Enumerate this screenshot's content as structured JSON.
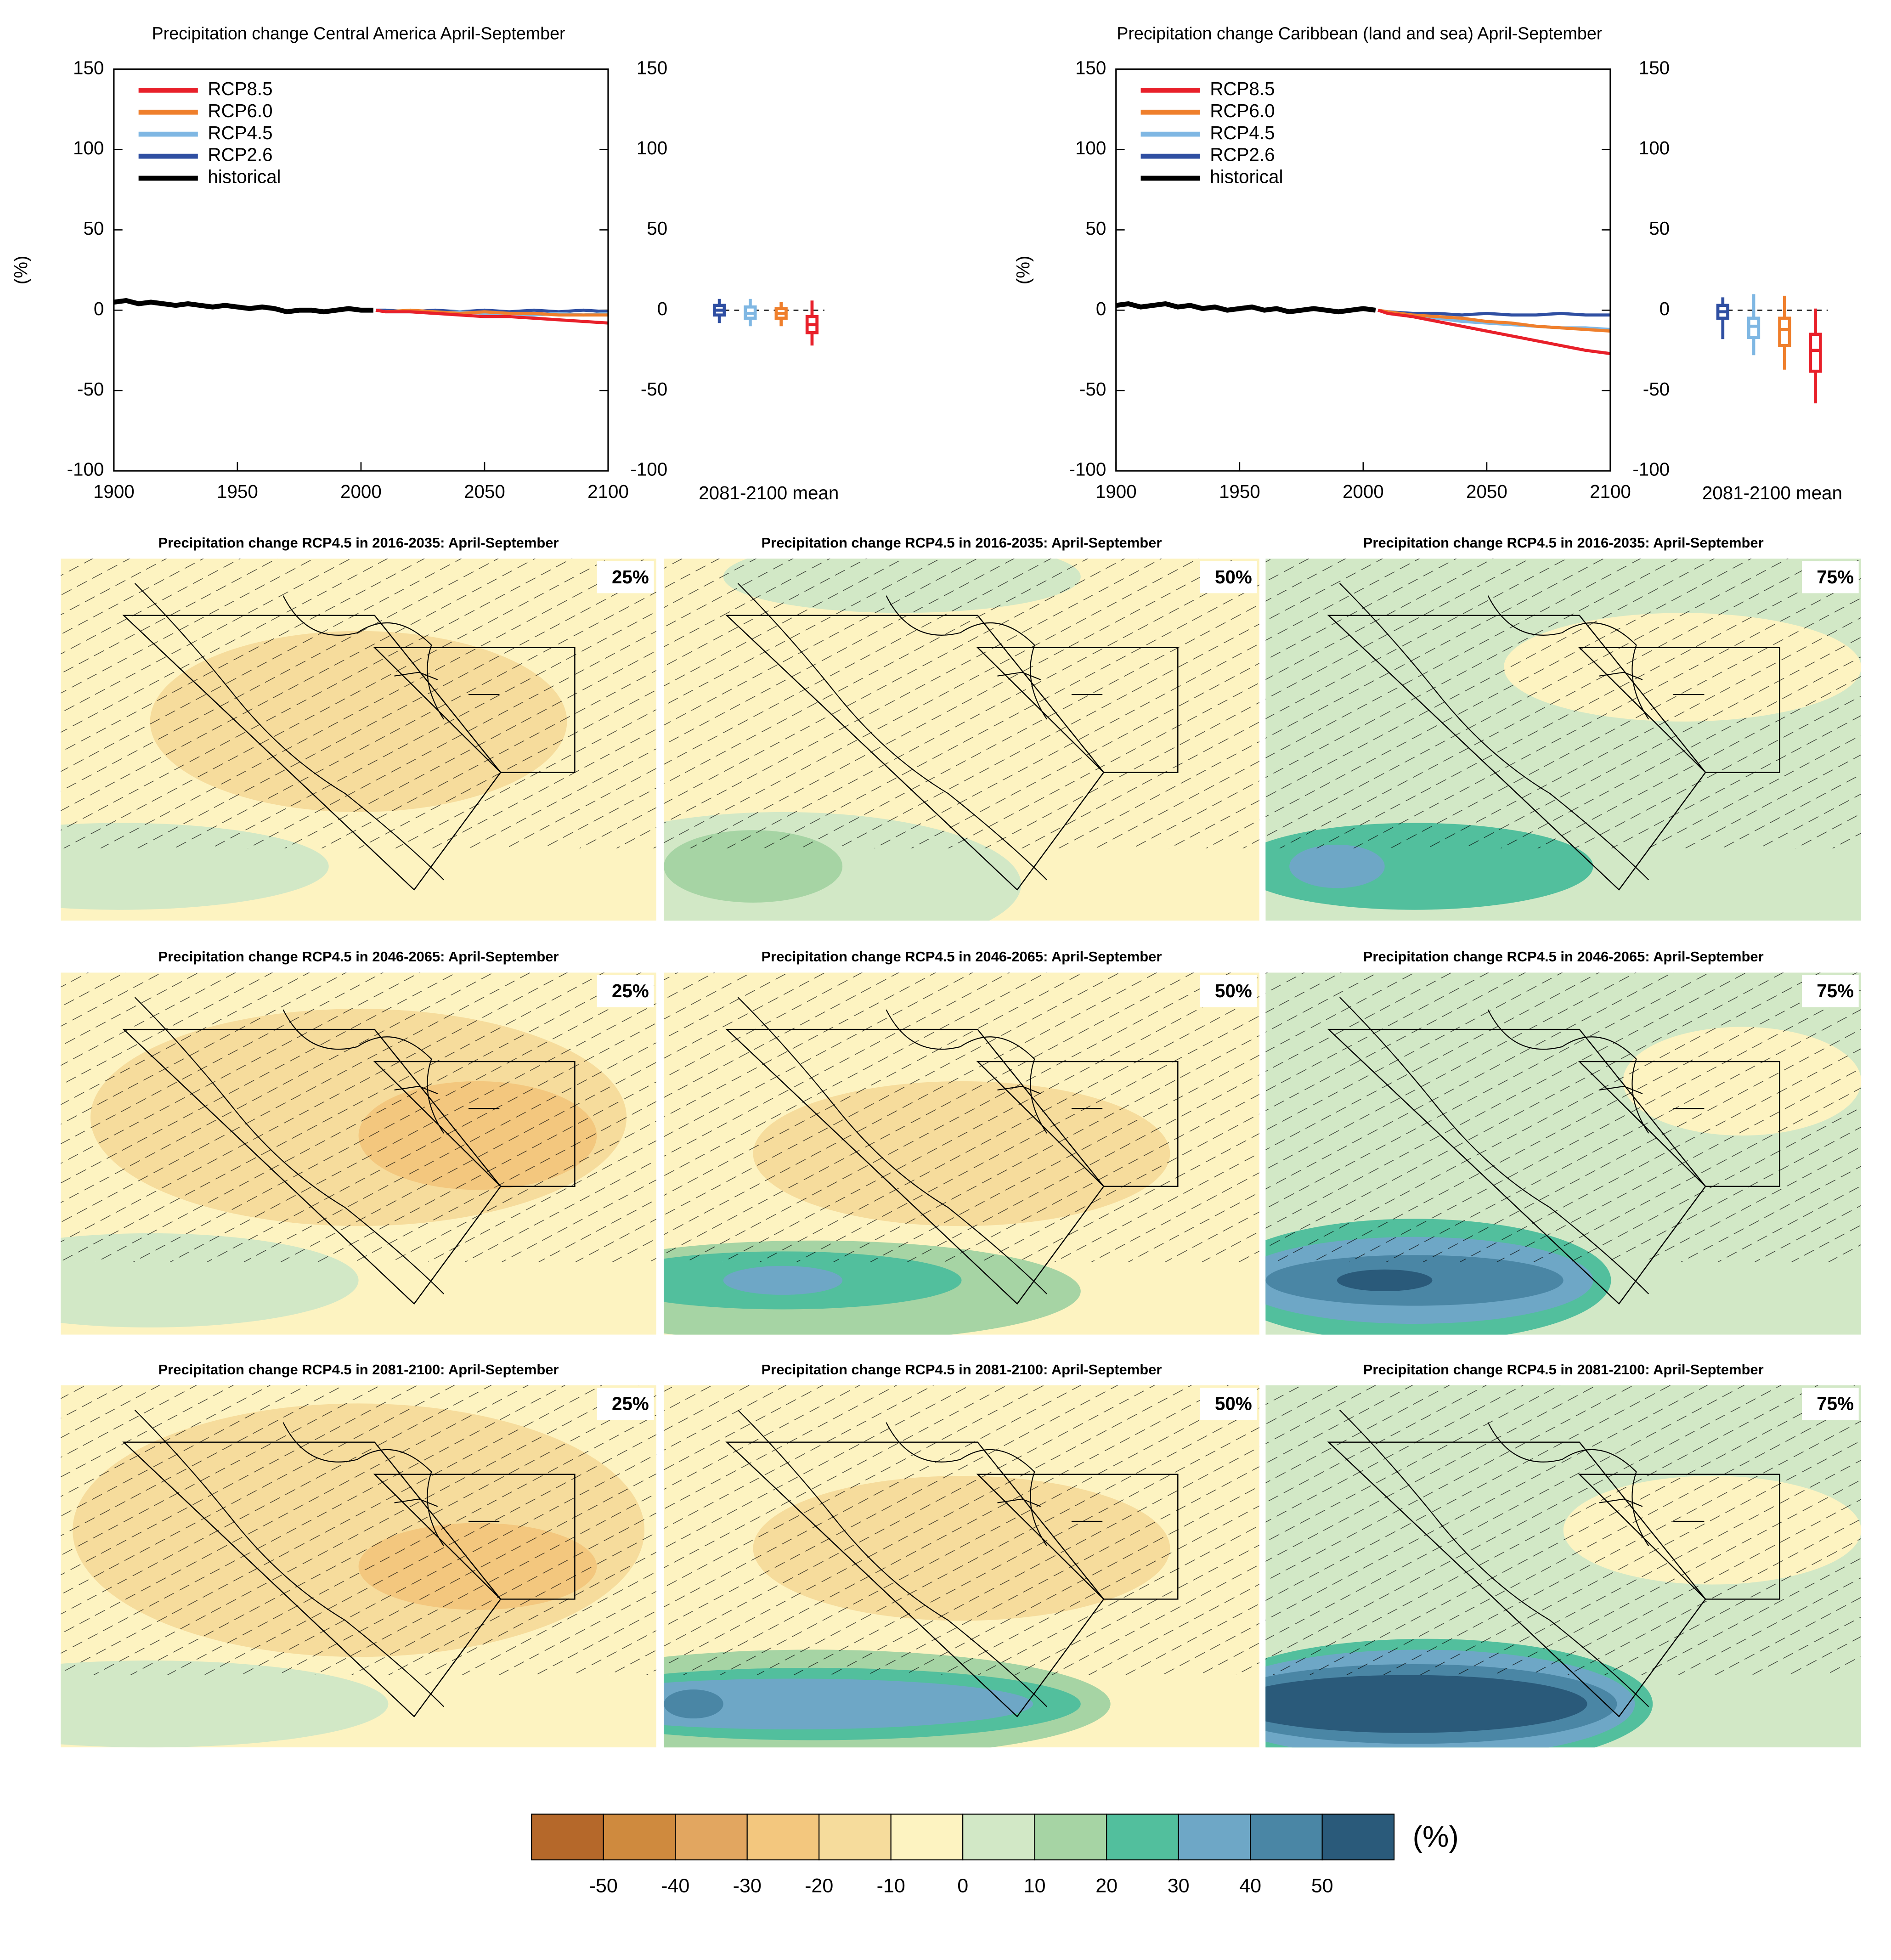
{
  "chart_data": [
    {
      "type": "line",
      "title": "Precipitation change Central America April-September",
      "y_label": "(%)",
      "xlim": [
        1900,
        2100
      ],
      "xticks": [
        1900,
        1950,
        2000,
        2050,
        2100
      ],
      "ylim": [
        -100,
        150
      ],
      "yticks": [
        -100,
        -50,
        0,
        50,
        100,
        150
      ],
      "y2lim": [
        -100,
        150
      ],
      "y2ticks": [
        -100,
        -50,
        0,
        50,
        100,
        150
      ],
      "box_label": "2081-2100 mean",
      "series": [
        {
          "name": "RCP8.5",
          "color": "#e8202a",
          "x": [
            2006,
            2010,
            2020,
            2030,
            2040,
            2050,
            2060,
            2070,
            2080,
            2090,
            2100
          ],
          "values": [
            0,
            -1,
            -1,
            -2,
            -3,
            -4,
            -4,
            -5,
            -6,
            -7,
            -8
          ],
          "box": {
            "min": -22,
            "q1": -14,
            "median": -9,
            "q3": -4,
            "max": 6
          }
        },
        {
          "name": "RCP6.0",
          "color": "#ef7f2c",
          "x": [
            2006,
            2010,
            2020,
            2030,
            2040,
            2050,
            2060,
            2070,
            2080,
            2090,
            2100
          ],
          "values": [
            0,
            -1,
            0,
            -1,
            -2,
            -1,
            -2,
            -2,
            -3,
            -3,
            -3
          ],
          "box": {
            "min": -10,
            "q1": -5,
            "median": -2,
            "q3": 1,
            "max": 5
          }
        },
        {
          "name": "RCP4.5",
          "color": "#7fb7e3",
          "x": [
            2006,
            2010,
            2020,
            2030,
            2040,
            2050,
            2060,
            2070,
            2080,
            2090,
            2100
          ],
          "values": [
            0,
            -1,
            -1,
            -2,
            -1,
            -2,
            -2,
            -3,
            -2,
            -3,
            -2
          ],
          "box": {
            "min": -10,
            "q1": -5,
            "median": -2,
            "q3": 2,
            "max": 7
          }
        },
        {
          "name": "RCP2.6",
          "color": "#2f4fa2",
          "x": [
            2006,
            2010,
            2020,
            2030,
            2040,
            2050,
            2060,
            2070,
            2080,
            2090,
            2100
          ],
          "values": [
            0,
            0,
            -1,
            0,
            -1,
            0,
            -1,
            0,
            -1,
            0,
            -1
          ],
          "box": {
            "min": -8,
            "q1": -3,
            "median": 0,
            "q3": 3,
            "max": 7
          }
        },
        {
          "name": "historical",
          "color": "#000000",
          "x": [
            1900,
            1905,
            1910,
            1915,
            1920,
            1925,
            1930,
            1935,
            1940,
            1945,
            1950,
            1955,
            1960,
            1965,
            1970,
            1975,
            1980,
            1985,
            1990,
            1995,
            2000,
            2005
          ],
          "values": [
            5,
            6,
            4,
            5,
            4,
            3,
            4,
            3,
            2,
            3,
            2,
            1,
            2,
            1,
            -1,
            0,
            0,
            -1,
            0,
            1,
            0,
            0
          ]
        }
      ]
    },
    {
      "type": "line",
      "title": "Precipitation change Caribbean (land and sea) April-September",
      "y_label": "(%)",
      "xlim": [
        1900,
        2100
      ],
      "xticks": [
        1900,
        1950,
        2000,
        2050,
        2100
      ],
      "ylim": [
        -100,
        150
      ],
      "yticks": [
        -100,
        -50,
        0,
        50,
        100,
        150
      ],
      "y2lim": [
        -100,
        150
      ],
      "y2ticks": [
        -100,
        -50,
        0,
        50,
        100,
        150
      ],
      "box_label": "2081-2100 mean",
      "series": [
        {
          "name": "RCP8.5",
          "color": "#e8202a",
          "x": [
            2006,
            2010,
            2020,
            2030,
            2040,
            2050,
            2060,
            2070,
            2080,
            2090,
            2100
          ],
          "values": [
            0,
            -2,
            -4,
            -7,
            -10,
            -13,
            -16,
            -19,
            -22,
            -25,
            -27
          ],
          "box": {
            "min": -58,
            "q1": -38,
            "median": -25,
            "q3": -15,
            "max": 1
          }
        },
        {
          "name": "RCP6.0",
          "color": "#ef7f2c",
          "x": [
            2006,
            2010,
            2020,
            2030,
            2040,
            2050,
            2060,
            2070,
            2080,
            2090,
            2100
          ],
          "values": [
            0,
            -1,
            -3,
            -4,
            -5,
            -7,
            -8,
            -10,
            -11,
            -12,
            -13
          ],
          "box": {
            "min": -37,
            "q1": -22,
            "median": -12,
            "q3": -5,
            "max": 9
          }
        },
        {
          "name": "RCP4.5",
          "color": "#7fb7e3",
          "x": [
            2006,
            2010,
            2020,
            2030,
            2040,
            2050,
            2060,
            2070,
            2080,
            2090,
            2100
          ],
          "values": [
            0,
            -2,
            -4,
            -5,
            -7,
            -8,
            -9,
            -10,
            -11,
            -11,
            -12
          ],
          "box": {
            "min": -28,
            "q1": -17,
            "median": -10,
            "q3": -5,
            "max": 10
          }
        },
        {
          "name": "RCP2.6",
          "color": "#2f4fa2",
          "x": [
            2006,
            2010,
            2020,
            2030,
            2040,
            2050,
            2060,
            2070,
            2080,
            2090,
            2100
          ],
          "values": [
            0,
            -1,
            -2,
            -2,
            -3,
            -2,
            -3,
            -3,
            -2,
            -3,
            -3
          ],
          "box": {
            "min": -18,
            "q1": -5,
            "median": -1,
            "q3": 3,
            "max": 8
          }
        },
        {
          "name": "historical",
          "color": "#000000",
          "x": [
            1900,
            1905,
            1910,
            1915,
            1920,
            1925,
            1930,
            1935,
            1940,
            1945,
            1950,
            1955,
            1960,
            1965,
            1970,
            1975,
            1980,
            1985,
            1990,
            1995,
            2000,
            2005
          ],
          "values": [
            3,
            4,
            2,
            3,
            4,
            2,
            3,
            1,
            2,
            0,
            1,
            2,
            0,
            1,
            -1,
            0,
            1,
            0,
            -1,
            0,
            1,
            0
          ]
        }
      ]
    }
  ],
  "maps": [
    {
      "title": "Precipitation change RCP4.5 in 2016-2035: April-September",
      "percentile": "25%"
    },
    {
      "title": "Precipitation change RCP4.5 in 2016-2035: April-September",
      "percentile": "50%"
    },
    {
      "title": "Precipitation change RCP4.5 in 2016-2035: April-September",
      "percentile": "75%"
    },
    {
      "title": "Precipitation change RCP4.5 in 2046-2065: April-September",
      "percentile": "25%"
    },
    {
      "title": "Precipitation change RCP4.5 in 2046-2065: April-September",
      "percentile": "50%"
    },
    {
      "title": "Precipitation change RCP4.5 in 2046-2065: April-September",
      "percentile": "75%"
    },
    {
      "title": "Precipitation change RCP4.5 in 2081-2100: April-September",
      "percentile": "25%"
    },
    {
      "title": "Precipitation change RCP4.5 in 2081-2100: April-September",
      "percentile": "50%"
    },
    {
      "title": "Precipitation change RCP4.5 in 2081-2100: April-September",
      "percentile": "75%"
    }
  ],
  "colorbar": {
    "colors": [
      "#b5682a",
      "#cf8a3e",
      "#e2a660",
      "#f3c77e",
      "#f6dc9c",
      "#fdf3c1",
      "#d2e8c6",
      "#a6d4a4",
      "#52bf9d",
      "#6ea7c6",
      "#4a86a5",
      "#2a5a7a"
    ],
    "ticks": [
      -50,
      -40,
      -30,
      -20,
      -10,
      0,
      10,
      20,
      30,
      40,
      50
    ],
    "unit": "(%)"
  }
}
